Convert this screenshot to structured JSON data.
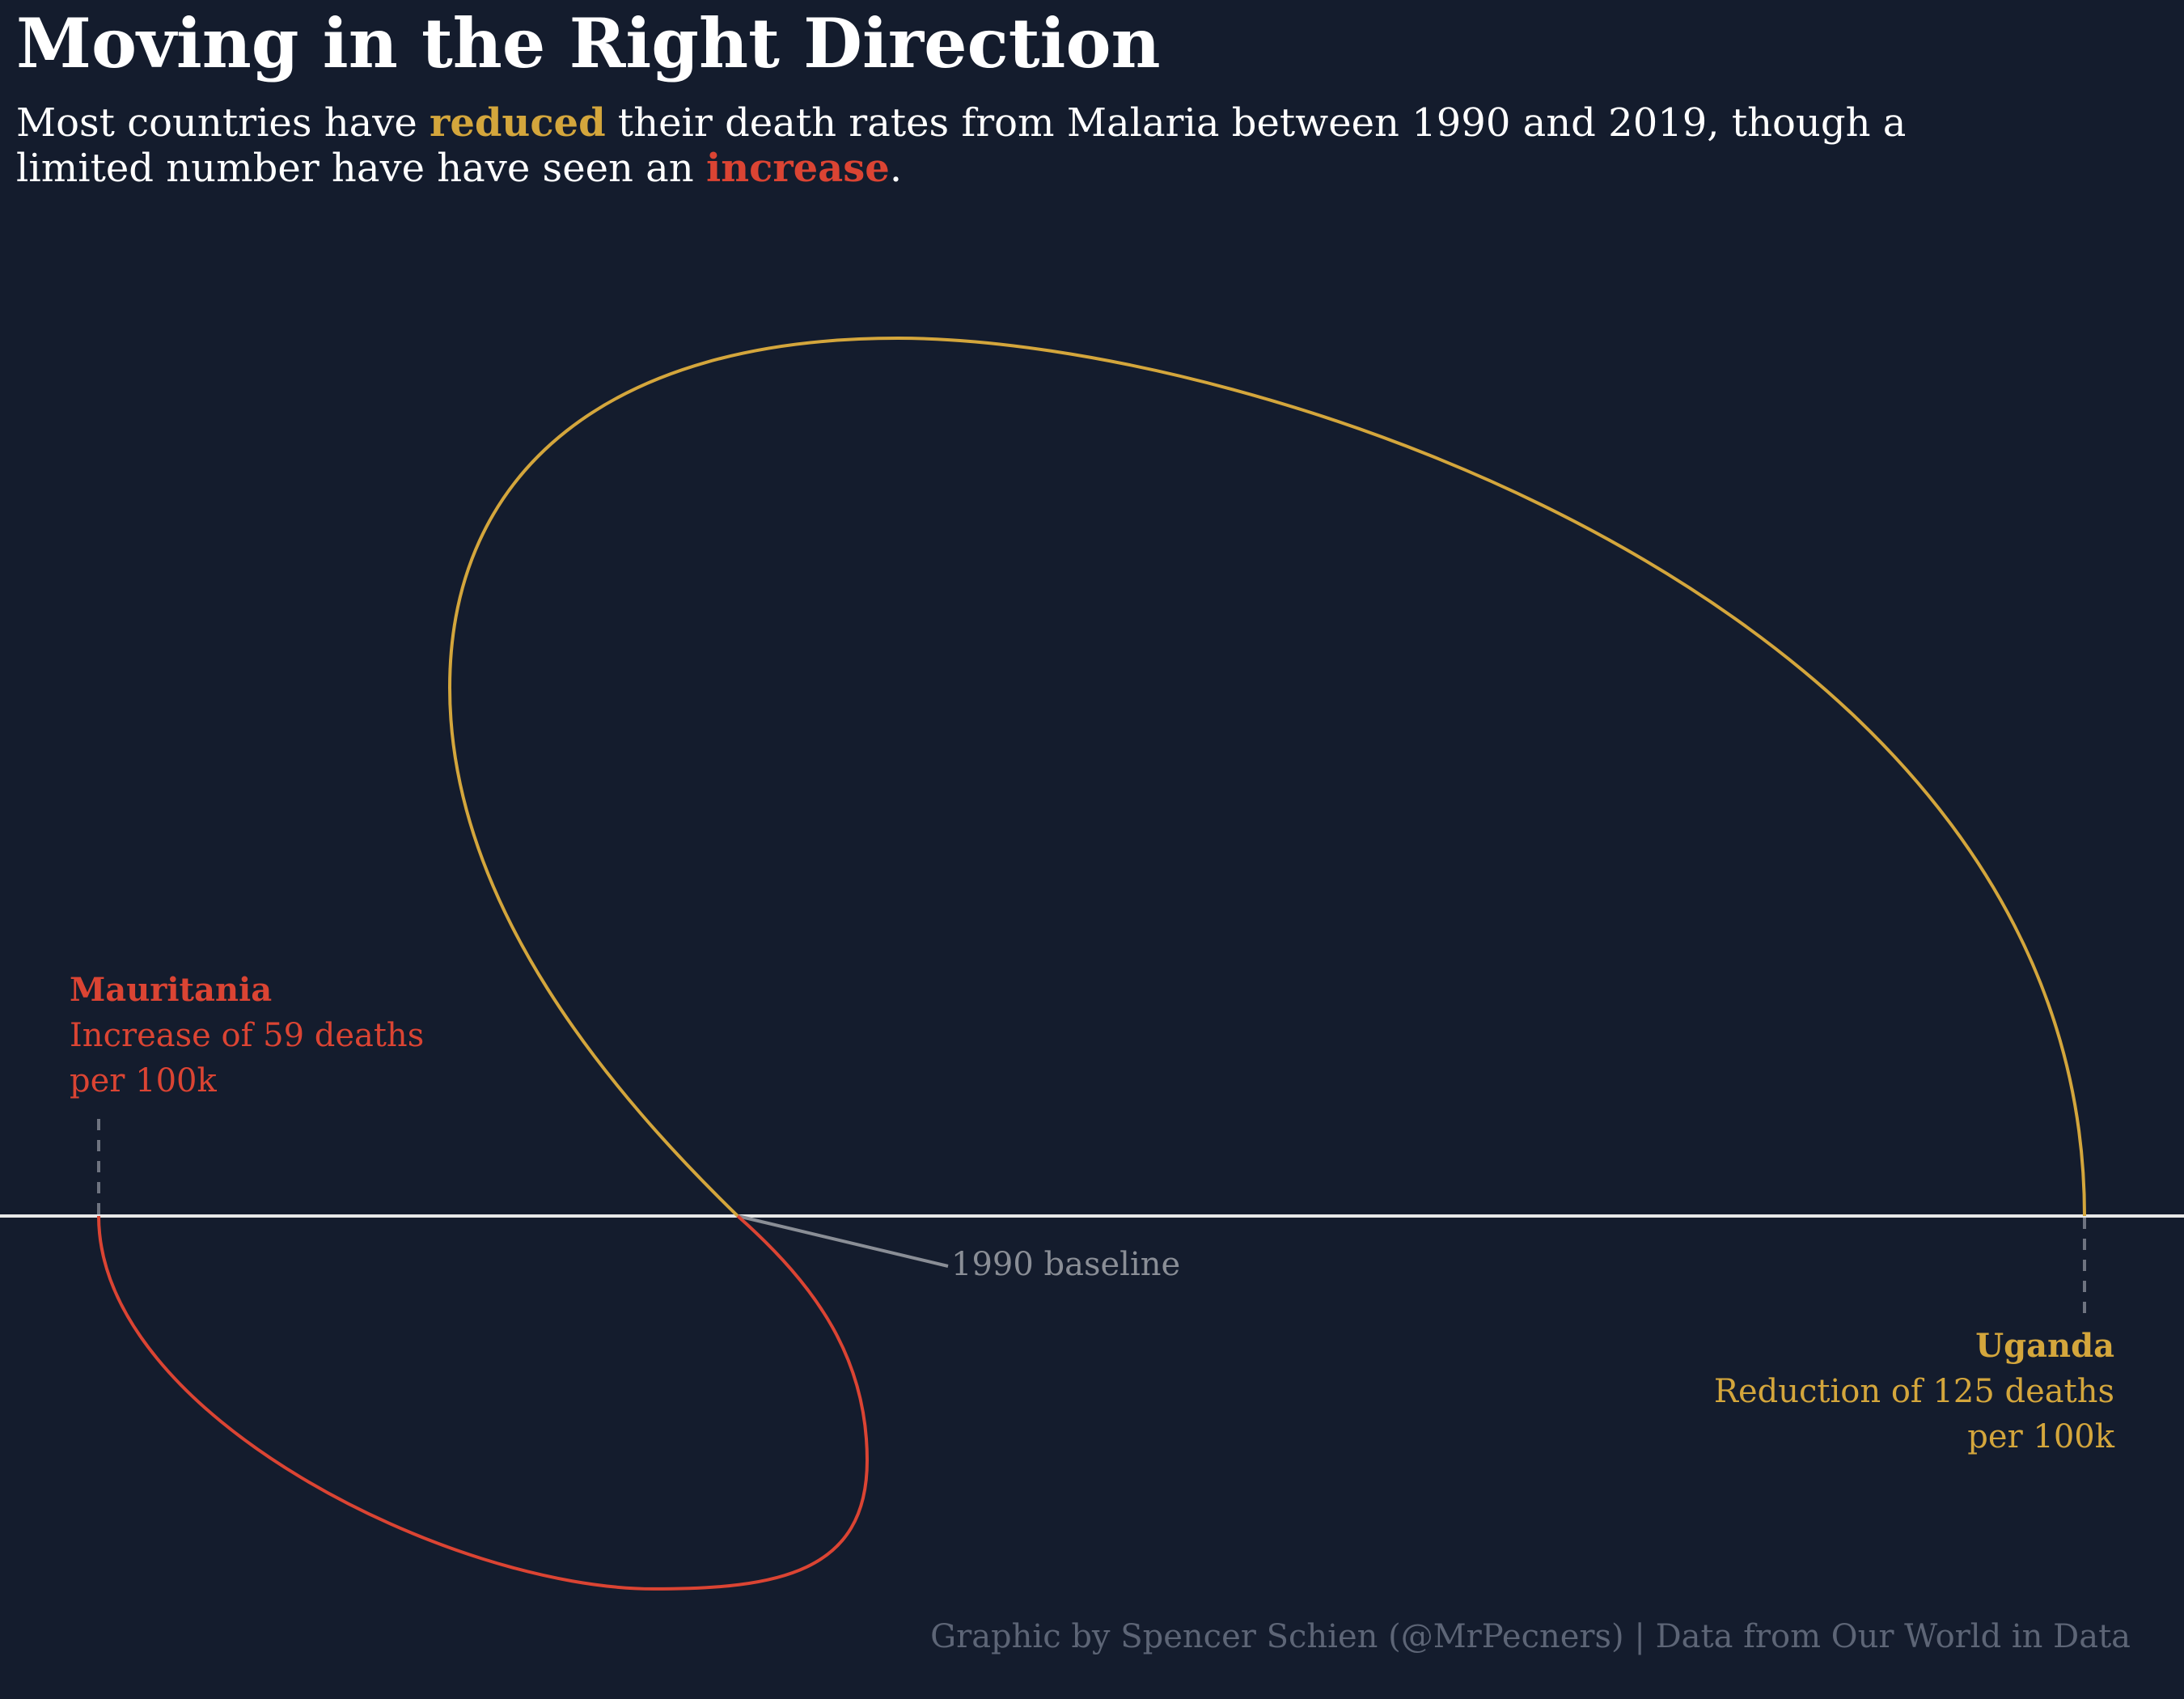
{
  "title": "Moving in the Right Direction",
  "subtitle": {
    "part1": "Most countries have ",
    "reduced": "reduced",
    "part2": " their death rates from Malaria between 1990 and 2019, though a limited number have have seen an ",
    "increase": "increase",
    "part3": "."
  },
  "colors": {
    "background": "#141c2d",
    "reduced": "#d4a63c",
    "increase": "#db4433",
    "baseline": "#ffffff",
    "muted": "#8a8e96"
  },
  "chart_data": {
    "type": "line",
    "baseline_label": "1990 baseline",
    "series": [
      {
        "name": "Mauritania",
        "change": 59,
        "direction": "increase",
        "color": "#db4433",
        "annotation_title": "Mauritania",
        "annotation_lines": [
          "Increase of 59 deaths",
          "per 100k"
        ]
      },
      {
        "name": "Uganda",
        "change": -125,
        "direction": "reduction",
        "color": "#d4a63c",
        "annotation_title": "Uganda",
        "annotation_lines": [
          "Reduction of 125 deaths",
          "per 100k"
        ]
      }
    ]
  },
  "caption": "Graphic by Spencer Schien (@MrPecners) | Data from Our World in Data"
}
